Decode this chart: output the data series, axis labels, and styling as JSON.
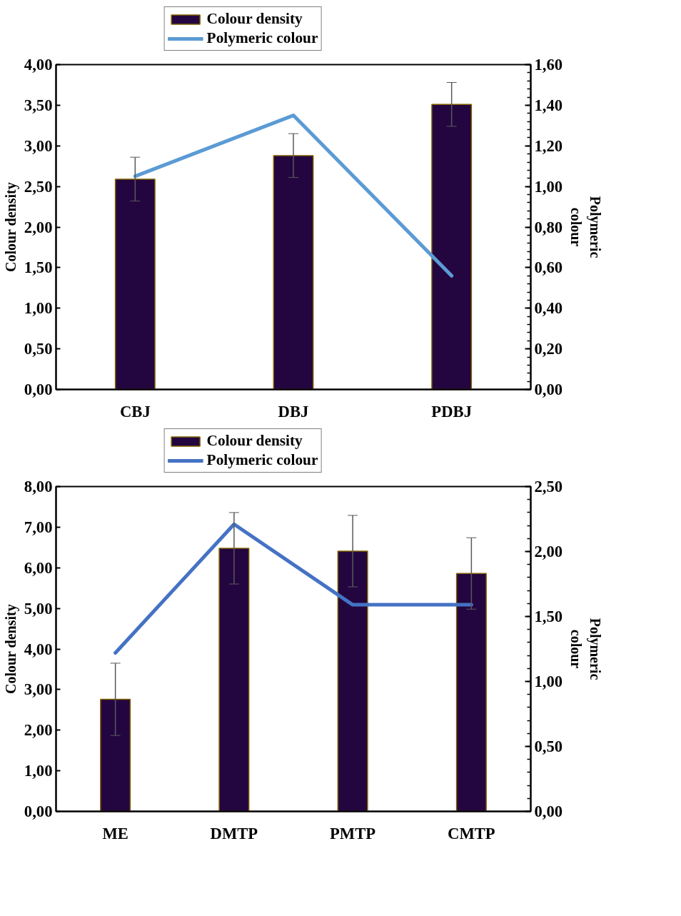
{
  "chart_data": [
    {
      "type": "bar",
      "categories": [
        "CBJ",
        "DBJ",
        "PDBJ"
      ],
      "ylabel": "Colour density",
      "y2label": "Polymeric colour",
      "legend": "top",
      "series": [
        {
          "name": "Colour density",
          "color": "#230640",
          "values": [
            2.59,
            2.88,
            3.51
          ],
          "errors": [
            0.27,
            0.27,
            0.27
          ]
        },
        {
          "name": "Polymeric colour",
          "type": "line",
          "axis": "y2",
          "color": "#5b9bd5",
          "values": [
            1.05,
            1.35,
            0.56
          ]
        }
      ],
      "ylim": [
        0,
        4
      ],
      "yticks": [
        {
          "value": 0,
          "label": "0,00"
        },
        {
          "value": 0.5,
          "label": "0,50"
        },
        {
          "value": 1,
          "label": "1,00"
        },
        {
          "value": 1.5,
          "label": "1,50"
        },
        {
          "value": 2,
          "label": "2,00"
        },
        {
          "value": 2.5,
          "label": "2,50"
        },
        {
          "value": 3,
          "label": "3,00"
        },
        {
          "value": 3.5,
          "label": "3,50"
        },
        {
          "value": 4,
          "label": "4,00"
        }
      ],
      "y2lim": [
        0,
        1.6
      ],
      "y2ticks": [
        {
          "value": 0,
          "label": "0,00"
        },
        {
          "value": 0.2,
          "label": "0,20"
        },
        {
          "value": 0.4,
          "label": "0,40"
        },
        {
          "value": 0.6,
          "label": "0,60"
        },
        {
          "value": 0.8,
          "label": "0,80"
        },
        {
          "value": 1,
          "label": "1,00"
        },
        {
          "value": 1.2,
          "label": "1,20"
        },
        {
          "value": 1.4,
          "label": "1,40"
        },
        {
          "value": 1.6,
          "label": "1,60"
        }
      ]
    },
    {
      "type": "bar",
      "categories": [
        "ME",
        "DMTP",
        "PMTP",
        "CMTP"
      ],
      "ylabel": "Colour density",
      "y2label": "Polymeric colour",
      "legend": "top",
      "series": [
        {
          "name": "Colour density",
          "color": "#230640",
          "values": [
            2.76,
            6.48,
            6.41,
            5.86
          ],
          "errors": [
            0.89,
            0.88,
            0.88,
            0.88
          ]
        },
        {
          "name": "Polymeric colour",
          "type": "line",
          "axis": "y2",
          "color": "#4472c4",
          "values": [
            1.22,
            2.21,
            1.59,
            1.59
          ]
        }
      ],
      "ylim": [
        0,
        8
      ],
      "yticks": [
        {
          "value": 0,
          "label": "0,00"
        },
        {
          "value": 1,
          "label": "1,00"
        },
        {
          "value": 2,
          "label": "2,00"
        },
        {
          "value": 3,
          "label": "3,00"
        },
        {
          "value": 4,
          "label": "4,00"
        },
        {
          "value": 5,
          "label": "5,00"
        },
        {
          "value": 6,
          "label": "6,00"
        },
        {
          "value": 7,
          "label": "7,00"
        },
        {
          "value": 8,
          "label": "8,00"
        }
      ],
      "y2lim": [
        0,
        2.5
      ],
      "y2ticks": [
        {
          "value": 0,
          "label": "0,00"
        },
        {
          "value": 0.5,
          "label": "0,50"
        },
        {
          "value": 1,
          "label": "1,00"
        },
        {
          "value": 1.5,
          "label": "1,50"
        },
        {
          "value": 2,
          "label": "2,00"
        },
        {
          "value": 2.5,
          "label": "2,50"
        }
      ]
    }
  ]
}
